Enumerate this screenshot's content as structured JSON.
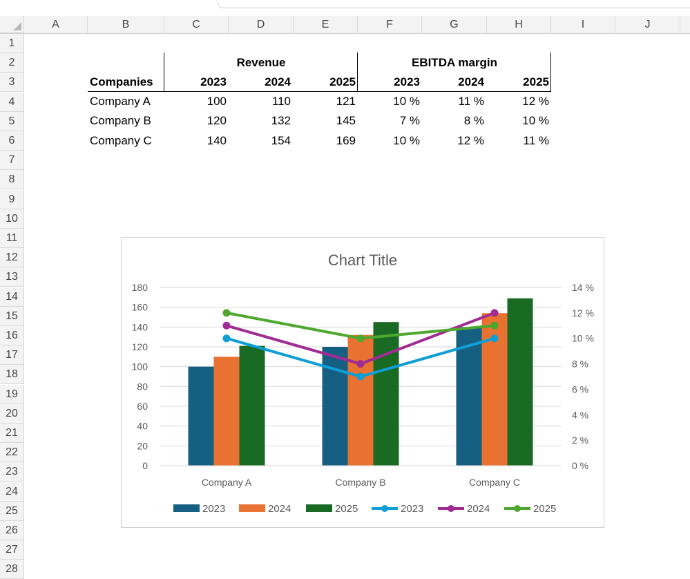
{
  "sheet": {
    "columns": [
      "A",
      "B",
      "C",
      "D",
      "E",
      "F",
      "G",
      "H",
      "I",
      "J"
    ],
    "rows": [
      "1",
      "2",
      "3",
      "4",
      "5",
      "6",
      "7",
      "8",
      "9",
      "10",
      "11",
      "12",
      "13",
      "14",
      "15",
      "16",
      "17",
      "18",
      "19",
      "20",
      "21",
      "22",
      "23",
      "24",
      "25",
      "26",
      "27",
      "28"
    ]
  },
  "table": {
    "group_revenue": "Revenue",
    "group_ebitda": "EBITDA margin",
    "companies_header": "Companies",
    "years": [
      "2023",
      "2024",
      "2025"
    ],
    "rows": [
      {
        "company": "Company A",
        "revenue": [
          "100",
          "110",
          "121"
        ],
        "margin": [
          "10 %",
          "11 %",
          "12 %"
        ]
      },
      {
        "company": "Company B",
        "revenue": [
          "120",
          "132",
          "145"
        ],
        "margin": [
          "7 %",
          "8 %",
          "10 %"
        ]
      },
      {
        "company": "Company C",
        "revenue": [
          "140",
          "154",
          "169"
        ],
        "margin": [
          "10 %",
          "12 %",
          "11 %"
        ]
      }
    ]
  },
  "chart_data": {
    "type": "bar",
    "title": "Chart Title",
    "categories": [
      "Company A",
      "Company B",
      "Company C"
    ],
    "series": [
      {
        "name": "2023",
        "type": "bar",
        "axis": "left",
        "values": [
          100,
          120,
          140
        ],
        "color": "#156082"
      },
      {
        "name": "2024",
        "type": "bar",
        "axis": "left",
        "values": [
          110,
          132,
          154
        ],
        "color": "#E97132"
      },
      {
        "name": "2025",
        "type": "bar",
        "axis": "left",
        "values": [
          121,
          145,
          169
        ],
        "color": "#196B24"
      },
      {
        "name": "2023",
        "type": "line",
        "axis": "right",
        "values": [
          10,
          7,
          10
        ],
        "color": "#0F9ED5"
      },
      {
        "name": "2024",
        "type": "line",
        "axis": "right",
        "values": [
          11,
          8,
          12
        ],
        "color": "#A02B93"
      },
      {
        "name": "2025",
        "type": "line",
        "axis": "right",
        "values": [
          12,
          10,
          11
        ],
        "color": "#4EA72E"
      }
    ],
    "ylim": [
      0,
      180
    ],
    "yticks": [
      "0",
      "20",
      "40",
      "60",
      "80",
      "100",
      "120",
      "140",
      "160",
      "180"
    ],
    "y2lim": [
      0,
      14
    ],
    "y2ticks": [
      "0 %",
      "2 %",
      "4 %",
      "6 %",
      "8 %",
      "10 %",
      "12 %",
      "14 %"
    ],
    "grid": true,
    "legend": "bottom"
  }
}
